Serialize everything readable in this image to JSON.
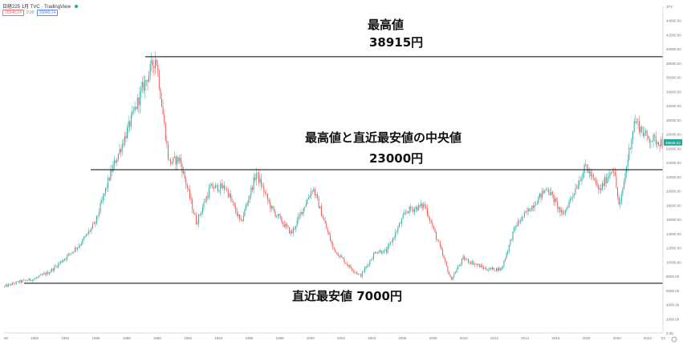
{
  "header": {
    "symbol": "日経225",
    "interval": "1月",
    "source": "TVC",
    "publisher": "TradingView",
    "quote_left": "26848.24",
    "quote_mid": "0.00",
    "quote_right": "26848.24"
  },
  "annotations": {
    "high_title": "最高値",
    "high_value": "38915円",
    "mid_title": "最高値と直近最安値の中央値",
    "mid_value": "23000円",
    "low_label": "直近最安値  7000円"
  },
  "colors": {
    "up": "#26a69a",
    "down": "#ef5350",
    "line": "#000000",
    "price_tag": "#26a69a"
  },
  "chart_data": {
    "type": "candlestick",
    "y_axis_label": "JPY",
    "ylim": [
      0,
      46000
    ],
    "y_ticks": [
      0,
      2000,
      4000,
      6000,
      8000,
      10000,
      12000,
      14000,
      16000,
      18000,
      20000,
      22000,
      24000,
      26000,
      28000,
      30000,
      32000,
      34000,
      36000,
      38000,
      40000,
      42000,
      44000
    ],
    "x_ticks": [
      "80",
      "1982",
      "1984",
      "1986",
      "1988",
      "1990",
      "1992",
      "1994",
      "1996",
      "1998",
      "2000",
      "2002",
      "2004",
      "2006",
      "2008",
      "2010",
      "2012",
      "2014",
      "2016",
      "2018",
      "2020",
      "2022",
      "'23"
    ],
    "xlim": [
      1980.0,
      2023.0
    ],
    "last_price": "26848.24",
    "reference_lines": [
      {
        "name": "最高値",
        "value": 38915
      },
      {
        "name": "中央値",
        "value": 23000
      },
      {
        "name": "直近最安値",
        "value": 7000
      }
    ],
    "series_anchors": [
      [
        1980.0,
        6500
      ],
      [
        1981.0,
        7200
      ],
      [
        1982.0,
        7600
      ],
      [
        1983.0,
        8600
      ],
      [
        1984.0,
        10500
      ],
      [
        1985.0,
        12500
      ],
      [
        1986.0,
        15500
      ],
      [
        1987.0,
        22500
      ],
      [
        1988.0,
        28000
      ],
      [
        1989.0,
        34000
      ],
      [
        1989.96,
        38900
      ],
      [
        1990.8,
        24000
      ],
      [
        1991.5,
        24500
      ],
      [
        1992.6,
        15500
      ],
      [
        1993.5,
        20500
      ],
      [
        1994.5,
        20500
      ],
      [
        1995.5,
        15500
      ],
      [
        1996.5,
        22500
      ],
      [
        1997.5,
        17500
      ],
      [
        1998.8,
        14000
      ],
      [
        2000.2,
        20500
      ],
      [
        2001.5,
        12000
      ],
      [
        2002.5,
        9500
      ],
      [
        2003.3,
        8000
      ],
      [
        2004.3,
        11500
      ],
      [
        2005.0,
        11500
      ],
      [
        2006.3,
        17200
      ],
      [
        2007.5,
        18000
      ],
      [
        2008.5,
        12000
      ],
      [
        2009.2,
        7500
      ],
      [
        2010.0,
        10500
      ],
      [
        2011.5,
        9000
      ],
      [
        2012.5,
        9000
      ],
      [
        2013.4,
        15000
      ],
      [
        2015.5,
        20500
      ],
      [
        2016.5,
        16500
      ],
      [
        2018.0,
        23500
      ],
      [
        2018.9,
        20000
      ],
      [
        2019.8,
        23500
      ],
      [
        2020.2,
        17500
      ],
      [
        2020.9,
        26500
      ],
      [
        2021.2,
        30000
      ],
      [
        2022.0,
        27500
      ],
      [
        2022.8,
        27000
      ],
      [
        2023.0,
        26848
      ]
    ]
  }
}
